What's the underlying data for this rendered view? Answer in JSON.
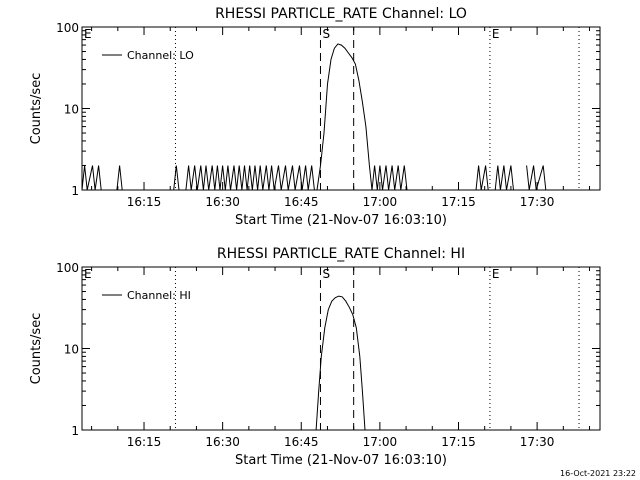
{
  "footer_stamp": "16-Oct-2021 23:22",
  "chart_data": [
    {
      "type": "line",
      "title": "RHESSI PARTICLE_RATE Channel: LO",
      "xlabel": "Start Time (21-Nov-07 16:03:10)",
      "ylabel": "Counts/sec",
      "y_scale": "log",
      "xlim": [
        "16:03:10",
        "17:42:00"
      ],
      "ylim": [
        1,
        100
      ],
      "x_ticks": [
        "16:15",
        "16:30",
        "16:45",
        "17:00",
        "17:15",
        "17:30"
      ],
      "y_ticks": [
        "1",
        "10",
        "100"
      ],
      "legend": {
        "position": "top-left",
        "entries": [
          "Channel: LO"
        ]
      },
      "event_lines": [
        {
          "label": "E",
          "time": "16:03:10",
          "style": "dotted"
        },
        {
          "label": "",
          "time": "16:21:00",
          "style": "dotted"
        },
        {
          "label": "S",
          "time": "16:48:40",
          "style": "dashed"
        },
        {
          "label": "",
          "time": "16:55:00",
          "style": "dashed"
        },
        {
          "label": "E",
          "time": "17:21:00",
          "style": "dotted"
        },
        {
          "label": "",
          "time": "17:38:00",
          "style": "dotted"
        }
      ],
      "series": [
        {
          "name": "Channel: LO",
          "points": [
            [
              "16:03:10",
              1
            ],
            [
              "16:03:40",
              2
            ],
            [
              "16:04:10",
              1
            ],
            [
              "16:05:10",
              2
            ],
            [
              "16:05:40",
              1
            ],
            [
              "16:06:20",
              2
            ],
            [
              "16:06:50",
              1
            ],
            [
              "16:09:50",
              1
            ],
            [
              "16:10:20",
              2
            ],
            [
              "16:10:50",
              1
            ],
            [
              "16:20:40",
              1
            ],
            [
              "16:21:10",
              2
            ],
            [
              "16:21:40",
              1
            ],
            [
              "16:23:00",
              1
            ],
            [
              "16:23:30",
              2
            ],
            [
              "16:24:00",
              1
            ],
            [
              "16:24:40",
              2
            ],
            [
              "16:25:10",
              1
            ],
            [
              "16:25:50",
              2
            ],
            [
              "16:26:20",
              1
            ],
            [
              "16:26:50",
              2
            ],
            [
              "16:27:20",
              1
            ],
            [
              "16:28:00",
              2
            ],
            [
              "16:28:30",
              1
            ],
            [
              "16:29:00",
              2
            ],
            [
              "16:29:30",
              1
            ],
            [
              "16:30:00",
              2
            ],
            [
              "16:30:30",
              1
            ],
            [
              "16:31:00",
              2
            ],
            [
              "16:31:30",
              1
            ],
            [
              "16:32:10",
              2
            ],
            [
              "16:32:40",
              1
            ],
            [
              "16:33:10",
              2
            ],
            [
              "16:33:40",
              1
            ],
            [
              "16:34:10",
              2
            ],
            [
              "16:34:40",
              1
            ],
            [
              "16:35:10",
              2
            ],
            [
              "16:35:40",
              1
            ],
            [
              "16:36:10",
              2
            ],
            [
              "16:36:40",
              1
            ],
            [
              "16:37:10",
              2
            ],
            [
              "16:37:40",
              1
            ],
            [
              "16:38:20",
              2
            ],
            [
              "16:38:50",
              1
            ],
            [
              "16:39:20",
              2
            ],
            [
              "16:39:50",
              1
            ],
            [
              "16:40:40",
              2
            ],
            [
              "16:41:10",
              1
            ],
            [
              "16:42:00",
              2
            ],
            [
              "16:42:30",
              1
            ],
            [
              "16:43:20",
              2
            ],
            [
              "16:43:50",
              1
            ],
            [
              "16:44:40",
              2
            ],
            [
              "16:45:10",
              1
            ],
            [
              "16:45:50",
              2
            ],
            [
              "16:46:20",
              1
            ],
            [
              "16:47:00",
              2
            ],
            [
              "16:47:30",
              1
            ],
            [
              "16:48:00",
              1
            ],
            [
              "16:48:40",
              2
            ],
            [
              "16:49:20",
              5
            ],
            [
              "16:50:00",
              20
            ],
            [
              "16:50:40",
              40
            ],
            [
              "16:51:20",
              55
            ],
            [
              "16:52:00",
              62
            ],
            [
              "16:52:40",
              60
            ],
            [
              "16:53:20",
              55
            ],
            [
              "16:54:00",
              48
            ],
            [
              "16:54:40",
              42
            ],
            [
              "16:55:20",
              35
            ],
            [
              "16:56:00",
              22
            ],
            [
              "16:56:40",
              12
            ],
            [
              "16:57:20",
              6
            ],
            [
              "16:58:00",
              2
            ],
            [
              "16:58:30",
              1
            ],
            [
              "16:59:00",
              2
            ],
            [
              "16:59:30",
              1
            ],
            [
              "17:00:00",
              2
            ],
            [
              "17:00:30",
              1
            ],
            [
              "17:01:10",
              2
            ],
            [
              "17:01:40",
              1
            ],
            [
              "17:02:20",
              2
            ],
            [
              "17:02:50",
              1
            ],
            [
              "17:03:30",
              2
            ],
            [
              "17:04:00",
              1
            ],
            [
              "17:04:40",
              2
            ],
            [
              "17:05:10",
              1
            ],
            [
              "17:18:20",
              1
            ],
            [
              "17:18:50",
              2
            ],
            [
              "17:19:20",
              1
            ],
            [
              "17:20:10",
              2
            ],
            [
              "17:20:40",
              1
            ],
            [
              "17:22:00",
              1
            ],
            [
              "17:22:30",
              2
            ],
            [
              "17:23:00",
              1
            ],
            [
              "17:23:40",
              2
            ],
            [
              "17:24:10",
              1
            ],
            [
              "17:25:00",
              2
            ],
            [
              "17:25:30",
              1
            ],
            [
              "17:28:00",
              2
            ],
            [
              "17:28:30",
              1
            ],
            [
              "17:29:20",
              2
            ],
            [
              "17:29:50",
              1
            ],
            [
              "17:31:10",
              2
            ],
            [
              "17:31:40",
              1
            ]
          ]
        }
      ]
    },
    {
      "type": "line",
      "title": "RHESSI PARTICLE_RATE Channel: HI",
      "xlabel": "Start Time (21-Nov-07 16:03:10)",
      "ylabel": "Counts/sec",
      "y_scale": "log",
      "xlim": [
        "16:03:10",
        "17:42:00"
      ],
      "ylim": [
        1,
        100
      ],
      "x_ticks": [
        "16:15",
        "16:30",
        "16:45",
        "17:00",
        "17:15",
        "17:30"
      ],
      "y_ticks": [
        "1",
        "10",
        "100"
      ],
      "legend": {
        "position": "top-left",
        "entries": [
          "Channel: HI"
        ]
      },
      "event_lines": [
        {
          "label": "E",
          "time": "16:03:10",
          "style": "dotted"
        },
        {
          "label": "",
          "time": "16:21:00",
          "style": "dotted"
        },
        {
          "label": "S",
          "time": "16:48:40",
          "style": "dashed"
        },
        {
          "label": "",
          "time": "16:55:00",
          "style": "dashed"
        },
        {
          "label": "E",
          "time": "17:21:00",
          "style": "dotted"
        },
        {
          "label": "",
          "time": "17:38:00",
          "style": "dotted"
        }
      ],
      "series": [
        {
          "name": "Channel: HI",
          "points": [
            [
              "16:47:50",
              1
            ],
            [
              "16:48:20",
              3
            ],
            [
              "16:48:50",
              8
            ],
            [
              "16:49:30",
              18
            ],
            [
              "16:50:10",
              30
            ],
            [
              "16:50:50",
              38
            ],
            [
              "16:51:30",
              42
            ],
            [
              "16:52:10",
              44
            ],
            [
              "16:52:50",
              43
            ],
            [
              "16:53:30",
              38
            ],
            [
              "16:54:10",
              32
            ],
            [
              "16:54:50",
              26
            ],
            [
              "16:55:30",
              18
            ],
            [
              "16:56:10",
              8
            ],
            [
              "16:56:40",
              3
            ],
            [
              "16:57:10",
              1
            ]
          ]
        }
      ]
    }
  ]
}
